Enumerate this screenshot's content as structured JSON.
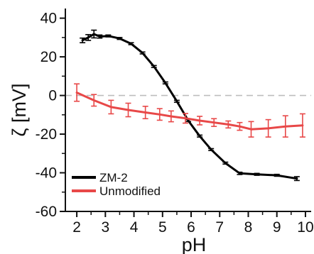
{
  "chart_data": {
    "type": "line",
    "xlabel": "pH",
    "ylabel": "ζ [mV]",
    "xlim": [
      1.6,
      10.2
    ],
    "ylim": [
      -60,
      45
    ],
    "x_ticks": [
      "2",
      "3",
      "4",
      "5",
      "6",
      "7",
      "8",
      "9",
      "10"
    ],
    "y_ticks": [
      "40",
      "20",
      "0",
      "-20",
      "-40",
      "-60"
    ],
    "zero_reference_line": true,
    "grid": false,
    "legend_position": "bottom-left",
    "series": [
      {
        "name": "ZM-2",
        "color": "#000000",
        "points": [
          {
            "x": 2.2,
            "y": 28.5,
            "err": 1.2
          },
          {
            "x": 2.4,
            "y": 30.0,
            "err": 1.5
          },
          {
            "x": 2.6,
            "y": 31.8,
            "err": 2.0
          },
          {
            "x": 2.8,
            "y": 30.5,
            "err": 0.8
          },
          {
            "x": 3.1,
            "y": 30.8,
            "err": 0.5
          },
          {
            "x": 3.5,
            "y": 29.5,
            "err": 0.5
          },
          {
            "x": 3.9,
            "y": 26.8,
            "err": 0.5
          },
          {
            "x": 4.3,
            "y": 22.0,
            "err": 0.5
          },
          {
            "x": 4.7,
            "y": 15.0,
            "err": 0.5
          },
          {
            "x": 5.1,
            "y": 6.5,
            "err": 0.5
          },
          {
            "x": 5.5,
            "y": -3.0,
            "err": 0.5
          },
          {
            "x": 5.9,
            "y": -13.0,
            "err": 0.5
          },
          {
            "x": 6.3,
            "y": -21.0,
            "err": 0.5
          },
          {
            "x": 6.7,
            "y": -28.0,
            "err": 0.5
          },
          {
            "x": 7.2,
            "y": -35.0,
            "err": 0.5
          },
          {
            "x": 7.7,
            "y": -40.3,
            "err": 0.6
          },
          {
            "x": 8.3,
            "y": -40.8,
            "err": 0.5
          },
          {
            "x": 9.0,
            "y": -41.3,
            "err": 0.5
          },
          {
            "x": 9.7,
            "y": -43.0,
            "err": 1.0
          }
        ]
      },
      {
        "name": "Unmodified",
        "color": "#e84848",
        "points": [
          {
            "x": 2.0,
            "y": 1.5,
            "err": 4.5
          },
          {
            "x": 2.6,
            "y": -2.5,
            "err": 3.0
          },
          {
            "x": 3.2,
            "y": -6.0,
            "err": 3.5
          },
          {
            "x": 3.8,
            "y": -7.5,
            "err": 3.5
          },
          {
            "x": 4.4,
            "y": -8.8,
            "err": 3.2
          },
          {
            "x": 4.9,
            "y": -9.8,
            "err": 3.0
          },
          {
            "x": 5.3,
            "y": -10.8,
            "err": 2.8
          },
          {
            "x": 5.8,
            "y": -11.8,
            "err": 2.5
          },
          {
            "x": 6.3,
            "y": -13.0,
            "err": 2.2
          },
          {
            "x": 6.8,
            "y": -14.0,
            "err": 2.0
          },
          {
            "x": 7.3,
            "y": -15.0,
            "err": 1.8
          },
          {
            "x": 7.7,
            "y": -16.0,
            "err": 2.0
          },
          {
            "x": 8.1,
            "y": -17.5,
            "err": 4.0
          },
          {
            "x": 8.7,
            "y": -17.0,
            "err": 4.5
          },
          {
            "x": 9.3,
            "y": -16.0,
            "err": 5.5
          },
          {
            "x": 9.9,
            "y": -15.5,
            "err": 6.0
          }
        ]
      }
    ]
  }
}
